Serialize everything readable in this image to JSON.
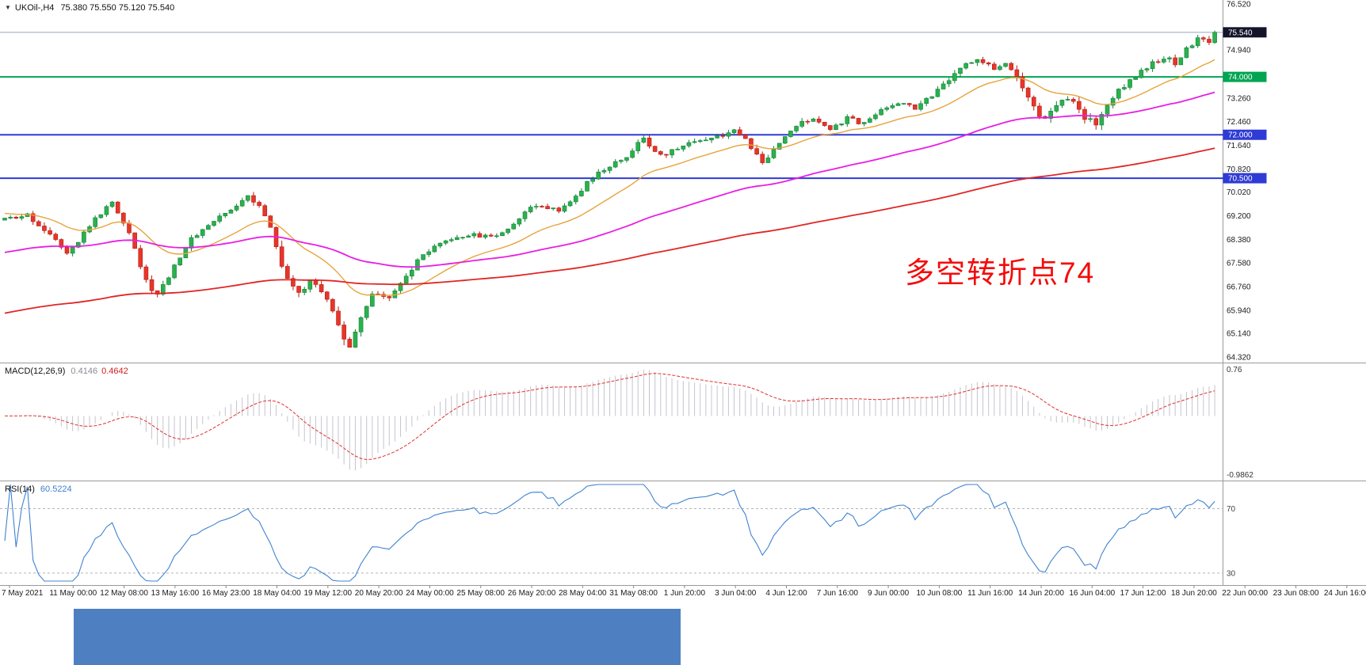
{
  "header": {
    "collapse_arrow": "▼",
    "symbol_period": "UKOil-,H4",
    "ohlc": "75.380 75.550 75.120 75.540"
  },
  "annotation": {
    "text": "多空转折点74",
    "color": "#f40b0b"
  },
  "background_strip": {
    "color": "#4e7fc1"
  },
  "chart_data": {
    "type": "candlestick",
    "symbol": "UKOil-",
    "timeframe": "H4",
    "title": "UKOil-,H4 75.380 75.550 75.120 75.540",
    "current_ohlc": {
      "open": "75.380",
      "high": "75.550",
      "low": "75.120",
      "close": "75.540"
    },
    "price_axis": {
      "ticks": [
        "76.520",
        "74.940",
        "73.260",
        "72.460",
        "71.640",
        "70.820",
        "70.020",
        "69.200",
        "68.380",
        "67.580",
        "66.760",
        "65.940",
        "65.140",
        "64.320"
      ],
      "boxes": [
        {
          "label": "75.540",
          "price": 75.54,
          "color": "#14142a"
        },
        {
          "label": "74.000",
          "price": 74.0,
          "color": "#00a551"
        },
        {
          "label": "72.000",
          "price": 72.0,
          "color": "#2e3bd5"
        },
        {
          "label": "70.500",
          "price": 70.5,
          "color": "#2e3bd5"
        }
      ]
    },
    "level_lines": [
      {
        "price": 74.0,
        "color": "#00a551",
        "width": 2
      },
      {
        "price": 72.0,
        "color": "#2e3bd5",
        "width": 2
      },
      {
        "price": 70.5,
        "color": "#2e3bd5",
        "width": 2
      }
    ],
    "bid_line": {
      "price": 75.54,
      "color": "#97a5bd"
    },
    "price_range": [
      64.32,
      76.52
    ],
    "candles": {
      "count": 215,
      "up_color": "#2bb14c",
      "up_edge": "#12813a",
      "down_color": "#e8352a",
      "down_edge": "#b31d14",
      "waypoints": [
        [
          0,
          69.05,
          0.12
        ],
        [
          4,
          69.2,
          0.12
        ],
        [
          8,
          68.6,
          0.15
        ],
        [
          11,
          68.0,
          0.15
        ],
        [
          13,
          68.35,
          0.12
        ],
        [
          16,
          69.1,
          0.12
        ],
        [
          19,
          69.65,
          0.14
        ],
        [
          22,
          68.7,
          0.15
        ],
        [
          25,
          66.9,
          0.2
        ],
        [
          27,
          66.45,
          0.18
        ],
        [
          30,
          67.5,
          0.15
        ],
        [
          33,
          68.4,
          0.12
        ],
        [
          36,
          68.9,
          0.1
        ],
        [
          40,
          69.4,
          0.12
        ],
        [
          43,
          69.95,
          0.15
        ],
        [
          45,
          69.6,
          0.18
        ],
        [
          47,
          68.8,
          0.22
        ],
        [
          50,
          66.9,
          0.25
        ],
        [
          52,
          66.45,
          0.2
        ],
        [
          54,
          66.95,
          0.18
        ],
        [
          56,
          66.6,
          0.18
        ],
        [
          58,
          65.9,
          0.22
        ],
        [
          60,
          64.95,
          0.28
        ],
        [
          61,
          64.75,
          0.25
        ],
        [
          63,
          65.8,
          0.22
        ],
        [
          65,
          66.45,
          0.18
        ],
        [
          68,
          66.3,
          0.15
        ],
        [
          71,
          67.1,
          0.15
        ],
        [
          74,
          67.85,
          0.13
        ],
        [
          78,
          68.3,
          0.12
        ],
        [
          82,
          68.55,
          0.1
        ],
        [
          86,
          68.45,
          0.1
        ],
        [
          89,
          68.75,
          0.1
        ],
        [
          92,
          69.35,
          0.12
        ],
        [
          95,
          69.6,
          0.12
        ],
        [
          98,
          69.35,
          0.12
        ],
        [
          101,
          69.9,
          0.13
        ],
        [
          104,
          70.55,
          0.14
        ],
        [
          107,
          70.85,
          0.13
        ],
        [
          110,
          71.3,
          0.14
        ],
        [
          113,
          71.85,
          0.14
        ],
        [
          116,
          71.25,
          0.14
        ],
        [
          119,
          71.55,
          0.12
        ],
        [
          122,
          71.8,
          0.12
        ],
        [
          126,
          71.95,
          0.12
        ],
        [
          129,
          72.15,
          0.12
        ],
        [
          132,
          71.6,
          0.15
        ],
        [
          134,
          70.95,
          0.16
        ],
        [
          137,
          71.75,
          0.14
        ],
        [
          140,
          72.35,
          0.13
        ],
        [
          143,
          72.5,
          0.12
        ],
        [
          146,
          72.25,
          0.12
        ],
        [
          149,
          72.55,
          0.12
        ],
        [
          152,
          72.4,
          0.12
        ],
        [
          155,
          72.9,
          0.12
        ],
        [
          158,
          73.1,
          0.12
        ],
        [
          161,
          72.95,
          0.12
        ],
        [
          164,
          73.35,
          0.12
        ],
        [
          167,
          73.85,
          0.14
        ],
        [
          170,
          74.45,
          0.14
        ],
        [
          172,
          74.65,
          0.14
        ],
        [
          175,
          74.25,
          0.15
        ],
        [
          177,
          74.55,
          0.15
        ],
        [
          179,
          73.9,
          0.18
        ],
        [
          181,
          73.35,
          0.22
        ],
        [
          183,
          72.5,
          0.25
        ],
        [
          185,
          72.8,
          0.2
        ],
        [
          187,
          73.3,
          0.18
        ],
        [
          189,
          73.05,
          0.16
        ],
        [
          191,
          72.6,
          0.2
        ],
        [
          193,
          72.35,
          0.22
        ],
        [
          195,
          73.1,
          0.18
        ],
        [
          197,
          73.55,
          0.15
        ],
        [
          200,
          74.05,
          0.14
        ],
        [
          203,
          74.45,
          0.14
        ],
        [
          205,
          74.7,
          0.14
        ],
        [
          207,
          74.5,
          0.14
        ],
        [
          209,
          74.95,
          0.14
        ],
        [
          211,
          75.3,
          0.13
        ],
        [
          213,
          75.15,
          0.13
        ],
        [
          214,
          75.54,
          0.12
        ]
      ]
    },
    "moving_averages": [
      {
        "name": "ma-fast-line",
        "color": "#e8a33d",
        "alpha": 0.1,
        "seed": 69.3,
        "width": 1.4
      },
      {
        "name": "ma-mid-line",
        "color": "#e81ee4",
        "alpha": 0.028,
        "seed": 67.9,
        "width": 1.8
      },
      {
        "name": "ma-slow-line",
        "color": "#e02626",
        "alpha": 0.011,
        "seed": 65.8,
        "width": 1.8
      }
    ],
    "macd": {
      "label": "MACD(12,26,9)",
      "value_main": "0.4146",
      "value_signal": "0.4642",
      "fast": 12,
      "slow": 26,
      "signal": 9,
      "range": [
        -1.0,
        0.8
      ],
      "axis_labels": [
        "0.76",
        "-0.9862"
      ],
      "hist_color": "#c4c4cf",
      "signal_color": "#e03030"
    },
    "rsi": {
      "label": "RSI(14)",
      "value": "60.5224",
      "period": 14,
      "levels": [
        70,
        30
      ],
      "range": [
        25,
        85
      ],
      "line_color": "#4083d0"
    },
    "time_axis": {
      "labels": [
        "7 May 2021",
        "11 May 00:00",
        "12 May 08:00",
        "13 May 16:00",
        "16 May 23:00",
        "18 May 04:00",
        "19 May 12:00",
        "20 May 20:00",
        "24 May 00:00",
        "25 May 08:00",
        "26 May 20:00",
        "28 May 04:00",
        "31 May 08:00",
        "1 Jun 20:00",
        "3 Jun 04:00",
        "4 Jun 12:00",
        "7 Jun 16:00",
        "9 Jun 00:00",
        "10 Jun 08:00",
        "11 Jun 16:00",
        "14 Jun 20:00",
        "16 Jun 04:00",
        "17 Jun 12:00",
        "18 Jun 20:00",
        "22 Jun 00:00",
        "23 Jun 08:00",
        "24 Jun 16:00"
      ]
    }
  }
}
